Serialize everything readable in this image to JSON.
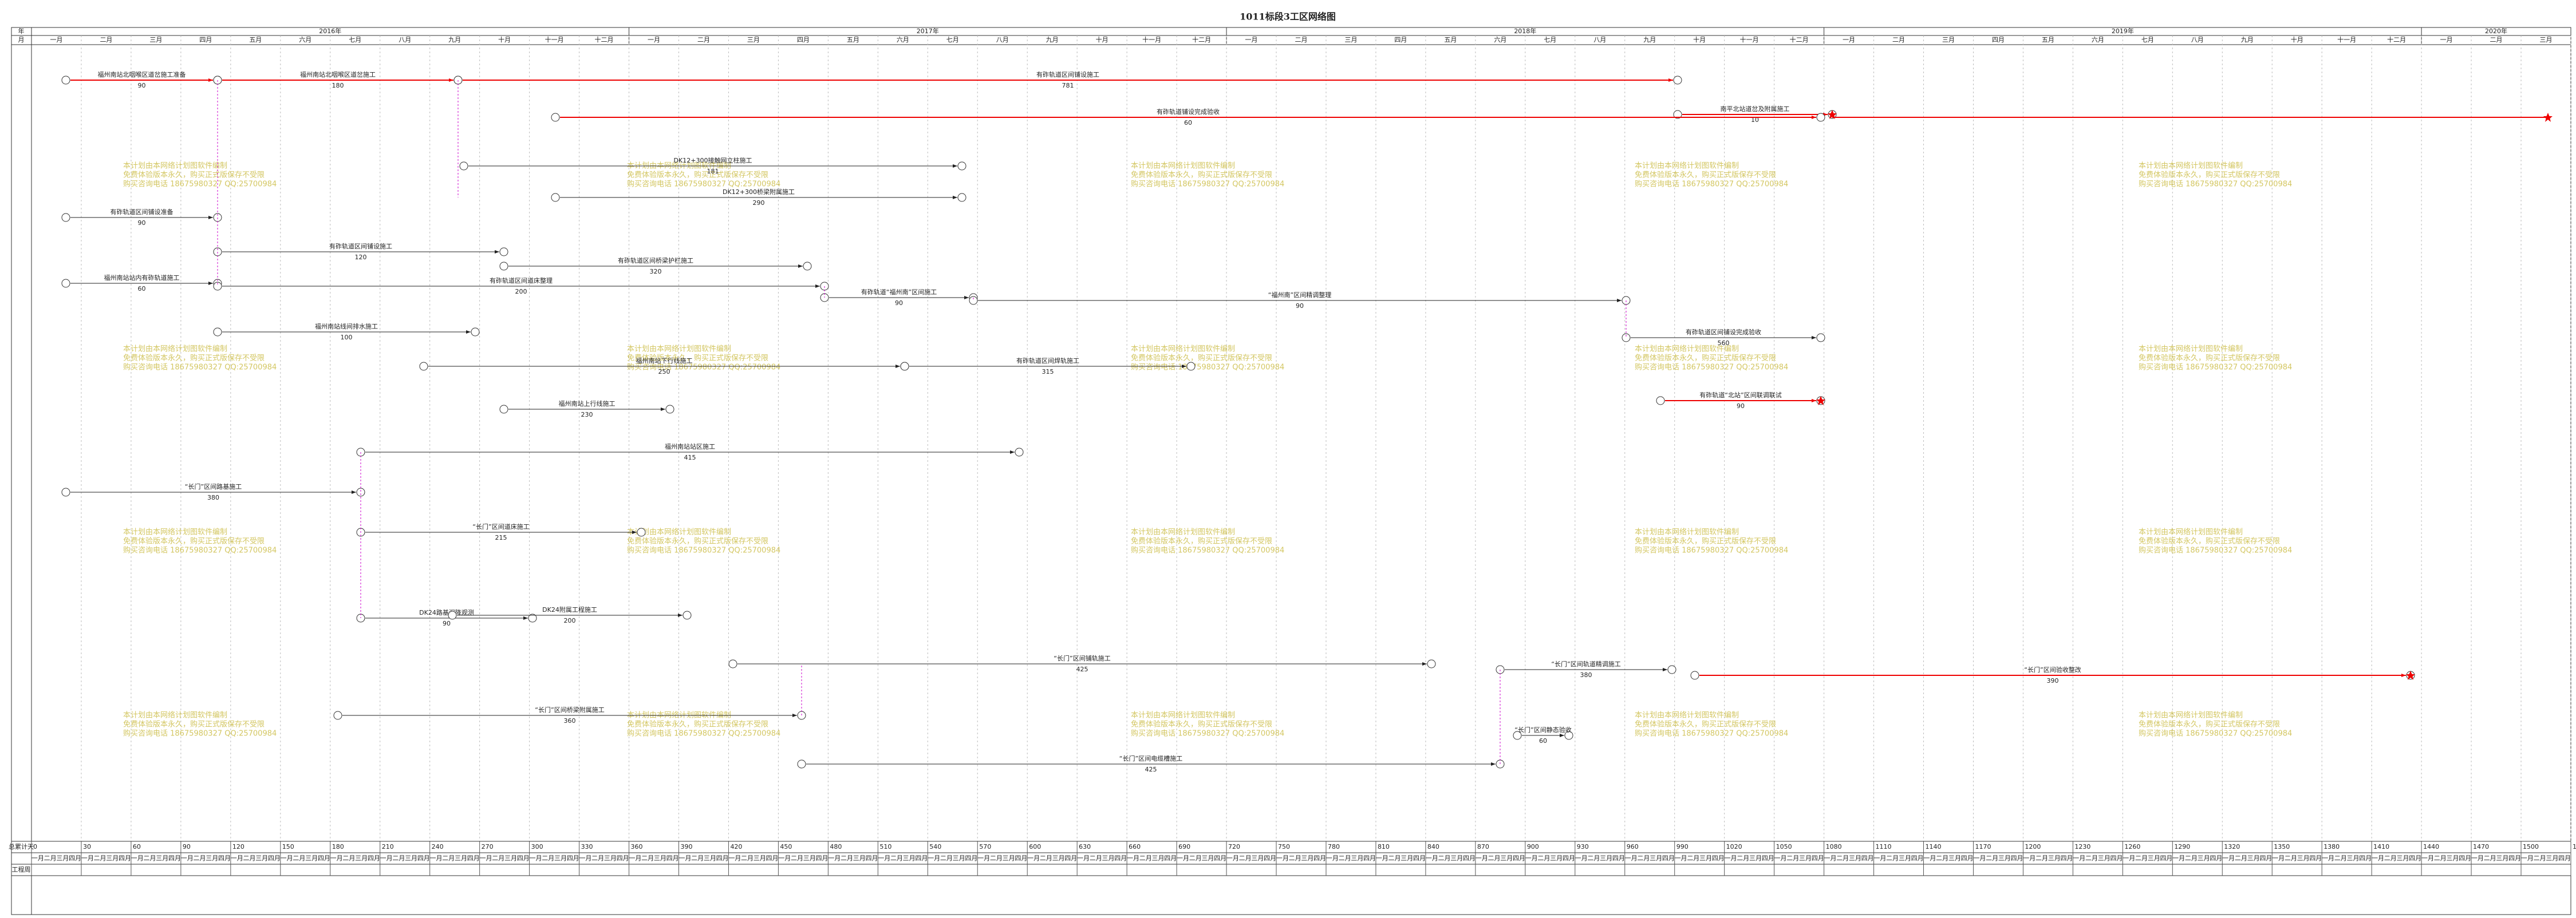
{
  "title": "1011标段3工区网络图",
  "header": {
    "year_label": "年",
    "month_label": "月",
    "years": [
      {
        "label": "2016年",
        "months": 12
      },
      {
        "label": "2017年",
        "months": 12
      },
      {
        "label": "2018年",
        "months": 12
      },
      {
        "label": "2019年",
        "months": 12
      },
      {
        "label": "2020年",
        "months": 3
      }
    ],
    "month_names": [
      "一月",
      "二月",
      "三月",
      "四月",
      "五月",
      "六月",
      "七月",
      "八月",
      "九月",
      "十月",
      "十一月",
      "十二月"
    ]
  },
  "footer": {
    "days_label": "总累计天",
    "weeks_label": "工程周",
    "days": [
      0,
      30,
      60,
      90,
      120,
      150,
      180,
      210,
      240,
      270,
      300,
      330,
      360,
      390,
      420,
      450,
      480,
      510,
      540,
      570,
      600,
      630,
      660,
      690,
      720,
      750,
      780,
      810,
      840,
      870,
      900,
      930,
      960,
      990,
      1020,
      1050,
      1080,
      1110,
      1140,
      1170,
      1200,
      1230,
      1260,
      1290,
      1320,
      1350,
      1380,
      1410,
      1440,
      1470,
      1500,
      1530
    ]
  },
  "watermark": [
    "本计划由本网络计划图软件编制",
    "免费体验版本永久，购买正式版保存不受限",
    "购买咨询电话 18675980327 QQ:25700984"
  ],
  "activities": [
    {
      "name": "福州南站北咽喉区道岔施工准备",
      "duration": "90"
    },
    {
      "name": "福州南站北咽喉区道岔施工",
      "duration": "180"
    },
    {
      "name": "有砟轨道区间铺设施工",
      "duration": "781"
    },
    {
      "name": "南平北站道岔及附属施工",
      "duration": "10"
    },
    {
      "name": "有砟轨道铺设完成验收",
      "duration": "60"
    },
    {
      "name": "DK12+300接触网立柱施工",
      "duration": "181"
    },
    {
      "name": "DK12+300桥梁附属施工",
      "duration": "290"
    },
    {
      "name": "有砟轨道区间铺设准备",
      "duration": "90"
    },
    {
      "name": "有砟轨道区间铺设施工",
      "duration": "120"
    },
    {
      "name": "有砟轨道区间桥梁护栏施工",
      "duration": "320"
    },
    {
      "name": "福州南站站内有砟轨道施工",
      "duration": "60"
    },
    {
      "name": "有砟轨道区间道床整理",
      "duration": "200"
    },
    {
      "name": "福州南站线间排水施工",
      "duration": "100"
    },
    {
      "name": "有砟轨道“福州南”区间施工",
      "duration": "90"
    },
    {
      "name": "有砟轨道区间焊轨施工",
      "duration": "315"
    },
    {
      "name": "“福州南”区间精调整理",
      "duration": "90"
    },
    {
      "name": "有砟轨道区间铺设完成验收",
      "duration": "560"
    },
    {
      "name": "福州南站下行线施工",
      "duration": "250"
    },
    {
      "name": "福州南站上行线施工",
      "duration": "230"
    },
    {
      "name": "福州南站站区施工",
      "duration": "415"
    },
    {
      "name": "“长门”区间路基施工",
      "duration": "380"
    },
    {
      "name": "“长门”区间道床施工",
      "duration": "215"
    },
    {
      "name": "“长门”区间铺轨施工",
      "duration": "425"
    },
    {
      "name": "DK24路基沉降观测",
      "duration": "90"
    },
    {
      "name": "DK24附属工程施工",
      "duration": "200"
    },
    {
      "name": "“长门”区间桥梁附属施工",
      "duration": "360"
    },
    {
      "name": "“长门”区间电缆槽施工",
      "duration": "425"
    },
    {
      "name": "“长门”区间验收整改",
      "duration": "390"
    },
    {
      "name": "“长门”区间轨道精调施工",
      "duration": "380"
    },
    {
      "name": "“长门”区间静态验收",
      "duration": "60"
    },
    {
      "name": "有砟轨道“北站”区间联调联试",
      "duration": "90"
    }
  ]
}
